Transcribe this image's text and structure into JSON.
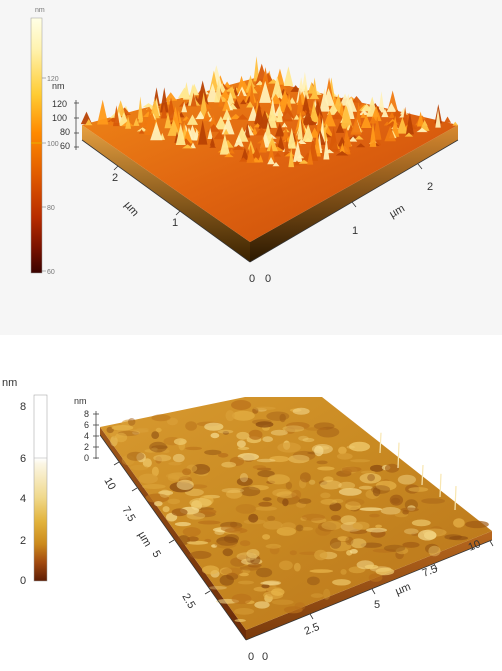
{
  "top": {
    "colorbar": {
      "unit": "nm",
      "ticks": [
        "120",
        "100",
        "80",
        "60"
      ],
      "gradient": [
        "#ffffe6",
        "#fff3b0",
        "#ffcc33",
        "#ff8a00",
        "#e05a00",
        "#b82c00",
        "#7a1200",
        "#3a0300"
      ]
    },
    "zscale": {
      "unit": "nm",
      "ticks": [
        "120",
        "100",
        "80",
        "60"
      ]
    },
    "xaxis": {
      "unit": "µm",
      "ticks": [
        "0",
        "1",
        "2"
      ]
    },
    "yaxis": {
      "unit": "µm",
      "ticks": [
        "0",
        "1",
        "2"
      ]
    }
  },
  "bottom": {
    "colorbar": {
      "unit": "nm",
      "ticks": [
        "8",
        "6",
        "4",
        "2",
        "0"
      ],
      "gradient": [
        "#ffffff",
        "#fbf6e4",
        "#f0d98c",
        "#e2b33c",
        "#cc8a1c",
        "#a24a10",
        "#5e1d04"
      ]
    },
    "zscale": {
      "unit": "nm",
      "ticks": [
        "8",
        "6",
        "4",
        "2",
        "0"
      ]
    },
    "xaxis": {
      "unit": "µm",
      "ticks": [
        "0",
        "2.5",
        "5",
        "7.5",
        "10"
      ]
    },
    "yaxis": {
      "unit": "µm",
      "ticks": [
        "0",
        "2.5",
        "5",
        "7.5",
        "10"
      ]
    }
  }
}
